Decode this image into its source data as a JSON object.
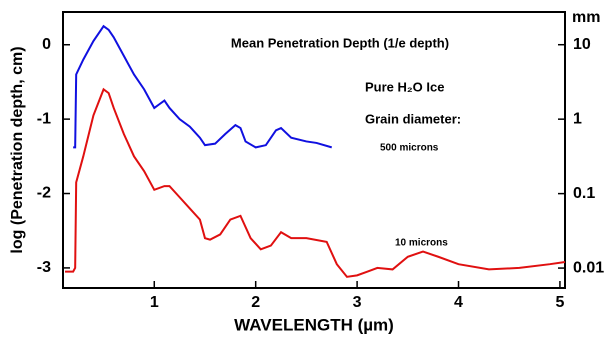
{
  "chart_data": {
    "type": "line",
    "title": "Mean Penetration Depth (1/e  depth)",
    "x_label": "WAVELENGTH (µm)",
    "y_label": "log (Penetration depth, cm)",
    "y2_label": "mm",
    "annotations": [
      "Pure H₂O Ice",
      "Grain diameter:"
    ],
    "xlim": [
      0.1,
      5.05
    ],
    "xticks": [
      1,
      2,
      3,
      4,
      5
    ],
    "ylim": [
      -3.27,
      0.44
    ],
    "yticks": [
      0,
      -1,
      -2,
      -3
    ],
    "y2lim": [
      0.0054,
      27.5
    ],
    "y2ticks": [
      10,
      1,
      0.1,
      0.01
    ],
    "y2log": true,
    "series": [
      {
        "name": "500 microns",
        "color": "#1010e0",
        "x": [
          0.2,
          0.22,
          0.23,
          0.3,
          0.4,
          0.5,
          0.55,
          0.6,
          0.7,
          0.8,
          0.9,
          1.0,
          1.05,
          1.1,
          1.15,
          1.25,
          1.35,
          1.45,
          1.5,
          1.6,
          1.7,
          1.8,
          1.85,
          1.9,
          2.0,
          2.1,
          2.2,
          2.25,
          2.35,
          2.5,
          2.6,
          2.75
        ],
        "values": [
          -1.38,
          -1.38,
          -0.4,
          -0.2,
          0.05,
          0.25,
          0.2,
          0.1,
          -0.15,
          -0.4,
          -0.6,
          -0.85,
          -0.8,
          -0.75,
          -0.85,
          -1.0,
          -1.1,
          -1.25,
          -1.35,
          -1.33,
          -1.2,
          -1.08,
          -1.12,
          -1.3,
          -1.38,
          -1.35,
          -1.15,
          -1.12,
          -1.25,
          -1.3,
          -1.32,
          -1.38
        ]
      },
      {
        "name": "10 microns",
        "color": "#e01010",
        "x": [
          0.12,
          0.2,
          0.22,
          0.23,
          0.3,
          0.4,
          0.5,
          0.55,
          0.6,
          0.7,
          0.8,
          0.9,
          1.0,
          1.1,
          1.15,
          1.25,
          1.35,
          1.45,
          1.5,
          1.55,
          1.65,
          1.75,
          1.85,
          1.95,
          2.05,
          2.15,
          2.25,
          2.35,
          2.5,
          2.7,
          2.8,
          2.9,
          3.0,
          3.1,
          3.2,
          3.35,
          3.5,
          3.65,
          3.8,
          4.0,
          4.3,
          4.6,
          4.9,
          5.05
        ],
        "values": [
          -3.05,
          -3.05,
          -3.0,
          -1.85,
          -1.5,
          -0.95,
          -0.6,
          -0.65,
          -0.85,
          -1.2,
          -1.5,
          -1.7,
          -1.95,
          -1.9,
          -1.9,
          -2.05,
          -2.2,
          -2.35,
          -2.6,
          -2.62,
          -2.55,
          -2.35,
          -2.3,
          -2.6,
          -2.75,
          -2.7,
          -2.52,
          -2.6,
          -2.6,
          -2.65,
          -2.95,
          -3.12,
          -3.1,
          -3.05,
          -3.0,
          -3.02,
          -2.85,
          -2.78,
          -2.85,
          -2.95,
          -3.02,
          -3.0,
          -2.95,
          -2.92
        ]
      }
    ]
  }
}
